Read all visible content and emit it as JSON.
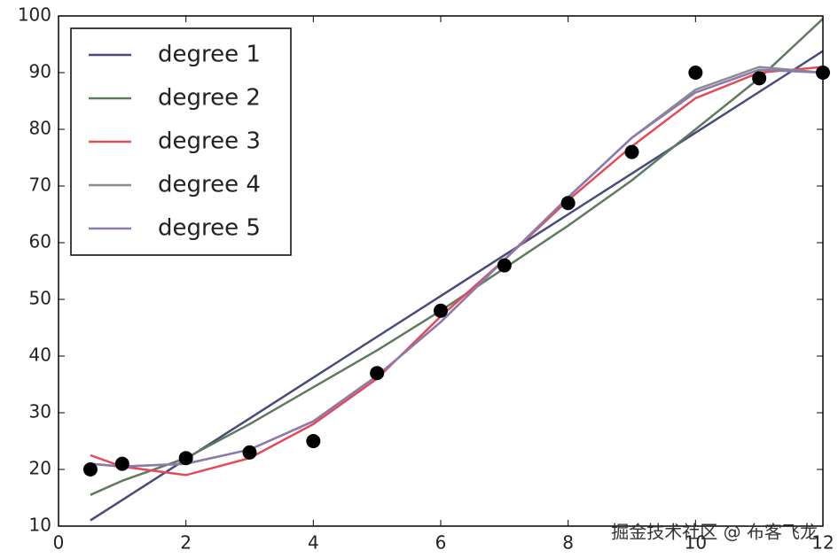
{
  "chart_data": {
    "type": "line",
    "x": [
      0.5,
      1,
      2,
      3,
      4,
      5,
      6,
      7,
      8,
      9,
      10,
      11,
      12
    ],
    "series": [
      {
        "name": "degree 1",
        "color": "#4a4a7c",
        "values": [
          11,
          14.6,
          21.8,
          29,
          36.2,
          43.4,
          50.6,
          57.8,
          65,
          72.2,
          79.4,
          86.6,
          93.8
        ]
      },
      {
        "name": "degree 2",
        "color": "#5f7a5f",
        "values": [
          15.5,
          18,
          22,
          28,
          34.5,
          41,
          48,
          55.5,
          63,
          71,
          80,
          89,
          99.5
        ]
      },
      {
        "name": "degree 3",
        "color": "#e24a5a",
        "values": [
          22.5,
          20.5,
          19,
          22,
          28,
          36,
          47,
          57,
          67.5,
          77,
          85.5,
          90,
          91
        ]
      },
      {
        "name": "degree 4",
        "color": "#8c8c8c",
        "values": [
          21,
          20.5,
          21,
          23.5,
          28.5,
          36.5,
          46,
          57,
          68,
          78.5,
          87,
          91,
          90
        ]
      },
      {
        "name": "degree 5",
        "color": "#8b7aab",
        "values": [
          21,
          20.5,
          21,
          23.5,
          28.5,
          36.5,
          46,
          57,
          68,
          78.5,
          86.5,
          90.5,
          90
        ]
      }
    ],
    "points": {
      "color": "#000000",
      "values": [
        20,
        21,
        22,
        23,
        25,
        37,
        48,
        56,
        67,
        76,
        90,
        89,
        90
      ]
    },
    "xlim": [
      0,
      12
    ],
    "xticks": [
      0,
      2,
      4,
      6,
      8,
      10,
      12
    ],
    "ylim": [
      10,
      100
    ],
    "yticks": [
      10,
      20,
      30,
      40,
      50,
      60,
      70,
      80,
      90,
      100
    ],
    "legend": "upper left",
    "watermark": "掘金技术社区 @ 布客飞龙"
  }
}
